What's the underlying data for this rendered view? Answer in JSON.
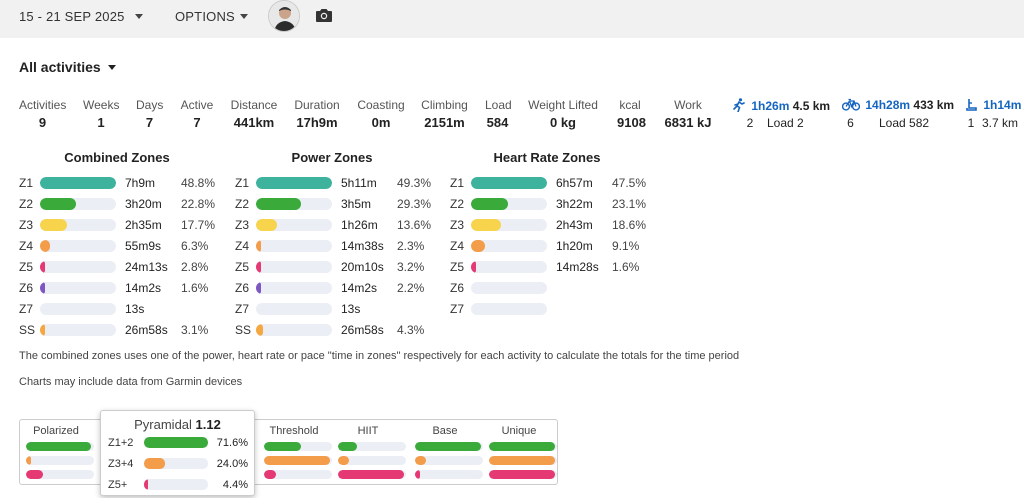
{
  "topbar": {
    "date_range": "15 - 21 SEP 2025",
    "options_label": "OPTIONS"
  },
  "filter": {
    "label": "All activities"
  },
  "stats": [
    {
      "label": "Activities",
      "value": "9"
    },
    {
      "label": "Weeks",
      "value": "1"
    },
    {
      "label": "Days",
      "value": "7"
    },
    {
      "label": "Active",
      "value": "7"
    },
    {
      "label": "Distance",
      "value": "441km"
    },
    {
      "label": "Duration",
      "value": "17h9m"
    },
    {
      "label": "Coasting",
      "value": "0m"
    },
    {
      "label": "Climbing",
      "value": "2151m"
    },
    {
      "label": "Load",
      "value": "584"
    },
    {
      "label": "Weight Lifted",
      "value": "0 kg"
    },
    {
      "label": "kcal",
      "value": "9108"
    },
    {
      "label": "Work",
      "value": "6831 kJ"
    }
  ],
  "sports": [
    {
      "icon": "run-icon",
      "time": "1h26m",
      "distance": "4.5 km",
      "count": "2",
      "load": "Load 2"
    },
    {
      "icon": "bike-icon",
      "time": "14h28m",
      "distance": "433 km",
      "count": "6",
      "load": "Load 582"
    },
    {
      "icon": "walk-icon",
      "time": "1h14m",
      "distance": "",
      "count": "1",
      "load": "3.7 km"
    }
  ],
  "zones": [
    {
      "title": "Combined Zones",
      "rows": [
        {
          "zone": "Z1",
          "time": "7h9m",
          "pct": "48.8%",
          "fill": 1.0,
          "color": "#3db39e"
        },
        {
          "zone": "Z2",
          "time": "3h20m",
          "pct": "22.8%",
          "fill": 0.47,
          "color": "#3aab3a"
        },
        {
          "zone": "Z3",
          "time": "2h35m",
          "pct": "17.7%",
          "fill": 0.36,
          "color": "#f7d44c"
        },
        {
          "zone": "Z4",
          "time": "55m9s",
          "pct": "6.3%",
          "fill": 0.13,
          "color": "#f39c4a"
        },
        {
          "zone": "Z5",
          "time": "24m13s",
          "pct": "2.8%",
          "fill": 0.06,
          "color": "#e53973"
        },
        {
          "zone": "Z6",
          "time": "14m2s",
          "pct": "1.6%",
          "fill": 0.04,
          "color": "#7e57c2"
        },
        {
          "zone": "Z7",
          "time": "13s",
          "pct": "",
          "fill": 0.0,
          "color": "#333333"
        },
        {
          "zone": "SS",
          "time": "26m58s",
          "pct": "3.1%",
          "fill": 0.07,
          "color": "#f5a742"
        }
      ]
    },
    {
      "title": "Power Zones",
      "rows": [
        {
          "zone": "Z1",
          "time": "5h11m",
          "pct": "49.3%",
          "fill": 1.0,
          "color": "#3db39e"
        },
        {
          "zone": "Z2",
          "time": "3h5m",
          "pct": "29.3%",
          "fill": 0.59,
          "color": "#3aab3a"
        },
        {
          "zone": "Z3",
          "time": "1h26m",
          "pct": "13.6%",
          "fill": 0.28,
          "color": "#f7d44c"
        },
        {
          "zone": "Z4",
          "time": "14m38s",
          "pct": "2.3%",
          "fill": 0.05,
          "color": "#f39c4a"
        },
        {
          "zone": "Z5",
          "time": "20m10s",
          "pct": "3.2%",
          "fill": 0.07,
          "color": "#e53973"
        },
        {
          "zone": "Z6",
          "time": "14m2s",
          "pct": "2.2%",
          "fill": 0.05,
          "color": "#7e57c2"
        },
        {
          "zone": "Z7",
          "time": "13s",
          "pct": "",
          "fill": 0.0,
          "color": "#333333"
        },
        {
          "zone": "SS",
          "time": "26m58s",
          "pct": "4.3%",
          "fill": 0.09,
          "color": "#f5a742"
        }
      ]
    },
    {
      "title": "Heart Rate Zones",
      "rows": [
        {
          "zone": "Z1",
          "time": "6h57m",
          "pct": "47.5%",
          "fill": 1.0,
          "color": "#3db39e"
        },
        {
          "zone": "Z2",
          "time": "3h22m",
          "pct": "23.1%",
          "fill": 0.49,
          "color": "#3aab3a"
        },
        {
          "zone": "Z3",
          "time": "2h43m",
          "pct": "18.6%",
          "fill": 0.39,
          "color": "#f7d44c"
        },
        {
          "zone": "Z4",
          "time": "1h20m",
          "pct": "9.1%",
          "fill": 0.19,
          "color": "#f39c4a"
        },
        {
          "zone": "Z5",
          "time": "14m28s",
          "pct": "1.6%",
          "fill": 0.03,
          "color": "#e53973"
        },
        {
          "zone": "Z6",
          "time": "",
          "pct": "",
          "fill": 0.0,
          "color": "#7e57c2"
        },
        {
          "zone": "Z7",
          "time": "",
          "pct": "",
          "fill": 0.0,
          "color": "#333333"
        }
      ]
    }
  ],
  "notes": {
    "combined": "The combined zones uses one of the power, heart rate or pace \"time in zones\" respectively for each activity to calculate the totals for the time period",
    "garmin": "Charts may include data from Garmin devices"
  },
  "distribution": [
    {
      "label": "Polarized",
      "bars": [
        {
          "fill": 0.95,
          "color": "#3aab3a"
        },
        {
          "fill": 0.07,
          "color": "#f39c4a"
        },
        {
          "fill": 0.25,
          "color": "#e53973"
        }
      ]
    },
    {
      "label": "",
      "bars": []
    },
    {
      "label": "",
      "bars": []
    },
    {
      "label": "Threshold",
      "bars": [
        {
          "fill": 0.55,
          "color": "#3aab3a"
        },
        {
          "fill": 0.97,
          "color": "#f39c4a"
        },
        {
          "fill": 0.18,
          "color": "#e53973"
        }
      ]
    },
    {
      "label": "HIIT",
      "bars": [
        {
          "fill": 0.28,
          "color": "#3aab3a"
        },
        {
          "fill": 0.16,
          "color": "#f39c4a"
        },
        {
          "fill": 0.97,
          "color": "#e53973"
        }
      ]
    },
    {
      "label": "Base",
      "bars": [
        {
          "fill": 0.97,
          "color": "#3aab3a"
        },
        {
          "fill": 0.16,
          "color": "#f39c4a"
        },
        {
          "fill": 0.07,
          "color": "#e53973"
        }
      ]
    },
    {
      "label": "Unique",
      "bars": [
        {
          "fill": 0.97,
          "color": "#3aab3a"
        },
        {
          "fill": 0.97,
          "color": "#f39c4a"
        },
        {
          "fill": 0.97,
          "color": "#e53973"
        }
      ]
    }
  ],
  "pyramidal": {
    "title": "Pyramidal",
    "index": "1.12",
    "rows": [
      {
        "label": "Z1+2",
        "pct": "71.6%",
        "fill": 1.0,
        "color": "#3aab3a"
      },
      {
        "label": "Z3+4",
        "pct": "24.0%",
        "fill": 0.33,
        "color": "#f39c4a"
      },
      {
        "label": "Z5+",
        "pct": "4.4%",
        "fill": 0.06,
        "color": "#e53973"
      }
    ]
  }
}
